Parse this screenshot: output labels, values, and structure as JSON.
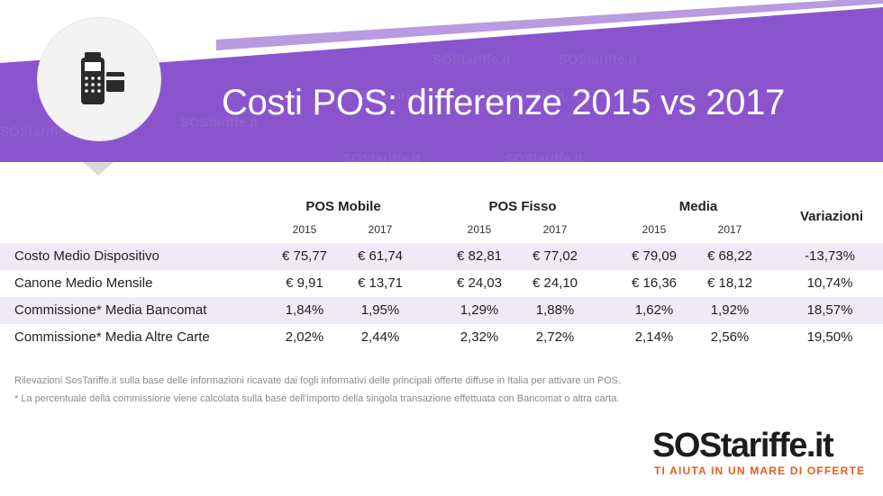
{
  "header": {
    "title": "Costi POS: differenze 2015 vs 2017",
    "watermark": "SOStariffe.it",
    "colors": {
      "purple": "#8a55cc",
      "stripe": "#b89be0",
      "circle": "#f3f3f3"
    },
    "icon": "pos-terminal-icon"
  },
  "table": {
    "groups": [
      "POS Mobile",
      "POS Fisso",
      "Media"
    ],
    "years": [
      "2015",
      "2017",
      "2015",
      "2017",
      "2015",
      "2017"
    ],
    "variation_header": "Variazioni",
    "rows": [
      {
        "label": "Costo Medio Dispositivo",
        "values": [
          "€ 75,77",
          "€ 61,74",
          "€ 82,81",
          "€ 77,02",
          "€ 79,09",
          "€ 68,22"
        ],
        "variation": "-13,73%"
      },
      {
        "label": "Canone Medio Mensile",
        "values": [
          "€ 9,91",
          "€ 13,71",
          "€ 24,03",
          "€ 24,10",
          "€ 16,36",
          "€ 18,12"
        ],
        "variation": "10,74%"
      },
      {
        "label": "Commissione* Media Bancomat",
        "values": [
          "1,84%",
          "1,95%",
          "1,29%",
          "1,88%",
          "1,62%",
          "1,92%"
        ],
        "variation": "18,57%"
      },
      {
        "label": "Commissione* Media Altre Carte",
        "values": [
          "2,02%",
          "2,44%",
          "2,32%",
          "2,72%",
          "2,14%",
          "2,56%"
        ],
        "variation": "19,50%"
      }
    ]
  },
  "notes": {
    "line1": "Rilevazioni SosTariffe.it sulla base delle informazioni ricavate dai fogli informativi delle principali offerte diffuse in Italia per attivare un POS.",
    "line2": "* La percentuale della commissione viene calcolata sulla base dell'importo della singola transazione effettuata con Bancomat o altra carta."
  },
  "logo": {
    "name": "SOStariffe.it",
    "tagline": "TI AIUTA IN UN MARE DI OFFERTE",
    "colors": {
      "dark": "#1c1c1c",
      "orange": "#e85d1a"
    }
  }
}
